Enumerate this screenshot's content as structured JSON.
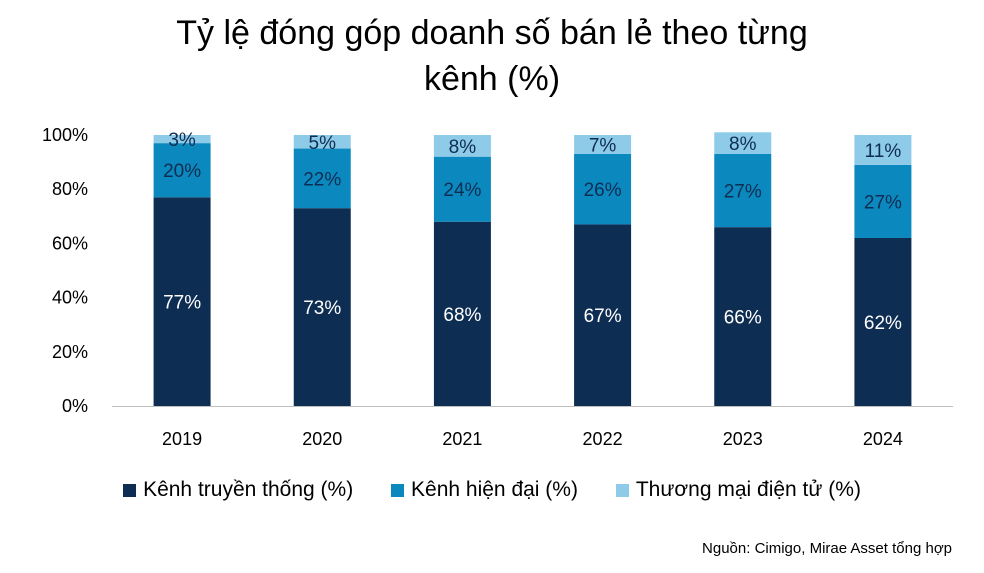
{
  "chart_data": {
    "type": "bar",
    "stacked": true,
    "title": "Tỷ lệ đóng góp doanh số bán lẻ theo từng kênh (%)",
    "title_lines": [
      "Tỷ lệ đóng góp doanh số bán lẻ theo từng",
      "kênh (%)"
    ],
    "categories": [
      "2019",
      "2020",
      "2021",
      "2022",
      "2023",
      "2024"
    ],
    "series": [
      {
        "name": "Kênh truyền thống (%)",
        "color": "#0e2d52",
        "label_color": "#ffffff",
        "values": [
          77,
          73,
          68,
          67,
          66,
          62
        ],
        "labels": [
          "77%",
          "73%",
          "68%",
          "67%",
          "66%",
          "62%"
        ]
      },
      {
        "name": "Kênh hiện đại (%)",
        "color": "#0b89bf",
        "label_color": "#0e2d52",
        "values": [
          20,
          22,
          24,
          26,
          27,
          27
        ],
        "labels": [
          "20%",
          "22%",
          "24%",
          "26%",
          "27%",
          "27%"
        ]
      },
      {
        "name": "Thương mại điện tử (%)",
        "color": "#8ecbe9",
        "label_color": "#0e2d52",
        "values": [
          3,
          5,
          8,
          7,
          8,
          11
        ],
        "labels": [
          "3%",
          "5%",
          "8%",
          "7%",
          "8%",
          "11%"
        ]
      }
    ],
    "y_ticks": [
      "0%",
      "20%",
      "40%",
      "60%",
      "80%",
      "100%"
    ],
    "ylim": [
      0,
      100
    ],
    "grid": false,
    "legend_position": "bottom"
  },
  "source_note": "Nguồn: Cimigo, Mirae Asset tổng hợp"
}
